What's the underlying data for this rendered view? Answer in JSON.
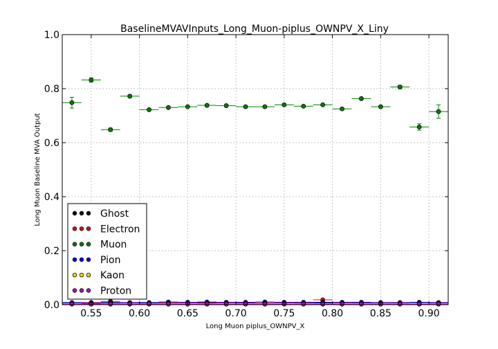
{
  "chart_data": {
    "type": "scatter",
    "title": "BaselineMVAVInputs_Long_Muon-piplus_OWNPV_X_Liny",
    "xlabel": "Long Muon piplus_OWNPV_X",
    "ylabel": "Long Muon Baseline MVA Output",
    "xlim": [
      0.52,
      0.92
    ],
    "ylim": [
      0.0,
      1.0
    ],
    "xticks": [
      "0.55",
      "0.60",
      "0.65",
      "0.70",
      "0.75",
      "0.80",
      "0.85",
      "0.90"
    ],
    "yticks": [
      "0.0",
      "0.2",
      "0.4",
      "0.6",
      "0.8",
      "1.0"
    ],
    "grid": true,
    "legend_position": "lower-left",
    "x": [
      0.53,
      0.55,
      0.57,
      0.59,
      0.61,
      0.63,
      0.65,
      0.67,
      0.69,
      0.71,
      0.73,
      0.75,
      0.77,
      0.79,
      0.81,
      0.83,
      0.85,
      0.87,
      0.89,
      0.91
    ],
    "x_halfwidth": 0.01,
    "series": [
      {
        "name": "Ghost",
        "color": "#000000",
        "values": [
          0.005,
          0.004,
          0.006,
          0.005,
          0.006,
          0.006,
          0.005,
          0.006,
          0.005,
          0.006,
          0.006,
          0.005,
          0.006,
          0.006,
          0.005,
          0.006,
          0.005,
          0.006,
          0.005,
          0.006
        ]
      },
      {
        "name": "Electron",
        "color": "#ff0000",
        "values": [
          0.003,
          0.008,
          0.012,
          0.006,
          0.004,
          0.007,
          0.006,
          0.008,
          0.006,
          0.007,
          0.006,
          0.006,
          0.007,
          0.018,
          0.006,
          0.005,
          0.006,
          0.005,
          0.004,
          0.005
        ]
      },
      {
        "name": "Muon",
        "color": "#007f00",
        "values": [
          0.748,
          0.832,
          0.648,
          0.772,
          0.722,
          0.73,
          0.733,
          0.738,
          0.737,
          0.733,
          0.733,
          0.74,
          0.735,
          0.74,
          0.725,
          0.763,
          0.733,
          0.806,
          0.658,
          0.715
        ],
        "errors": [
          0.02,
          0.008,
          0.006,
          0.005,
          0.004,
          0.003,
          0.003,
          0.003,
          0.003,
          0.003,
          0.003,
          0.004,
          0.003,
          0.003,
          0.004,
          0.004,
          0.004,
          0.006,
          0.012,
          0.025
        ]
      },
      {
        "name": "Pion",
        "color": "#0000ff",
        "values": [
          0.008,
          0.006,
          0.008,
          0.008,
          0.008,
          0.01,
          0.009,
          0.01,
          0.009,
          0.009,
          0.01,
          0.009,
          0.009,
          0.009,
          0.009,
          0.009,
          0.008,
          0.008,
          0.009,
          0.008
        ]
      },
      {
        "name": "Kaon",
        "color": "#ffd700",
        "values": [
          0.004,
          0.003,
          0.004,
          0.004,
          0.004,
          0.004,
          0.004,
          0.004,
          0.004,
          0.004,
          0.004,
          0.004,
          0.004,
          0.004,
          0.004,
          0.004,
          0.004,
          0.004,
          0.004,
          0.004
        ]
      },
      {
        "name": "Proton",
        "color": "#bf00bf",
        "values": [
          0.002,
          0.002,
          0.002,
          0.002,
          0.002,
          0.002,
          0.002,
          0.002,
          0.002,
          0.002,
          0.002,
          0.002,
          0.002,
          0.002,
          0.002,
          0.002,
          0.002,
          0.002,
          0.002,
          0.002
        ]
      }
    ]
  }
}
